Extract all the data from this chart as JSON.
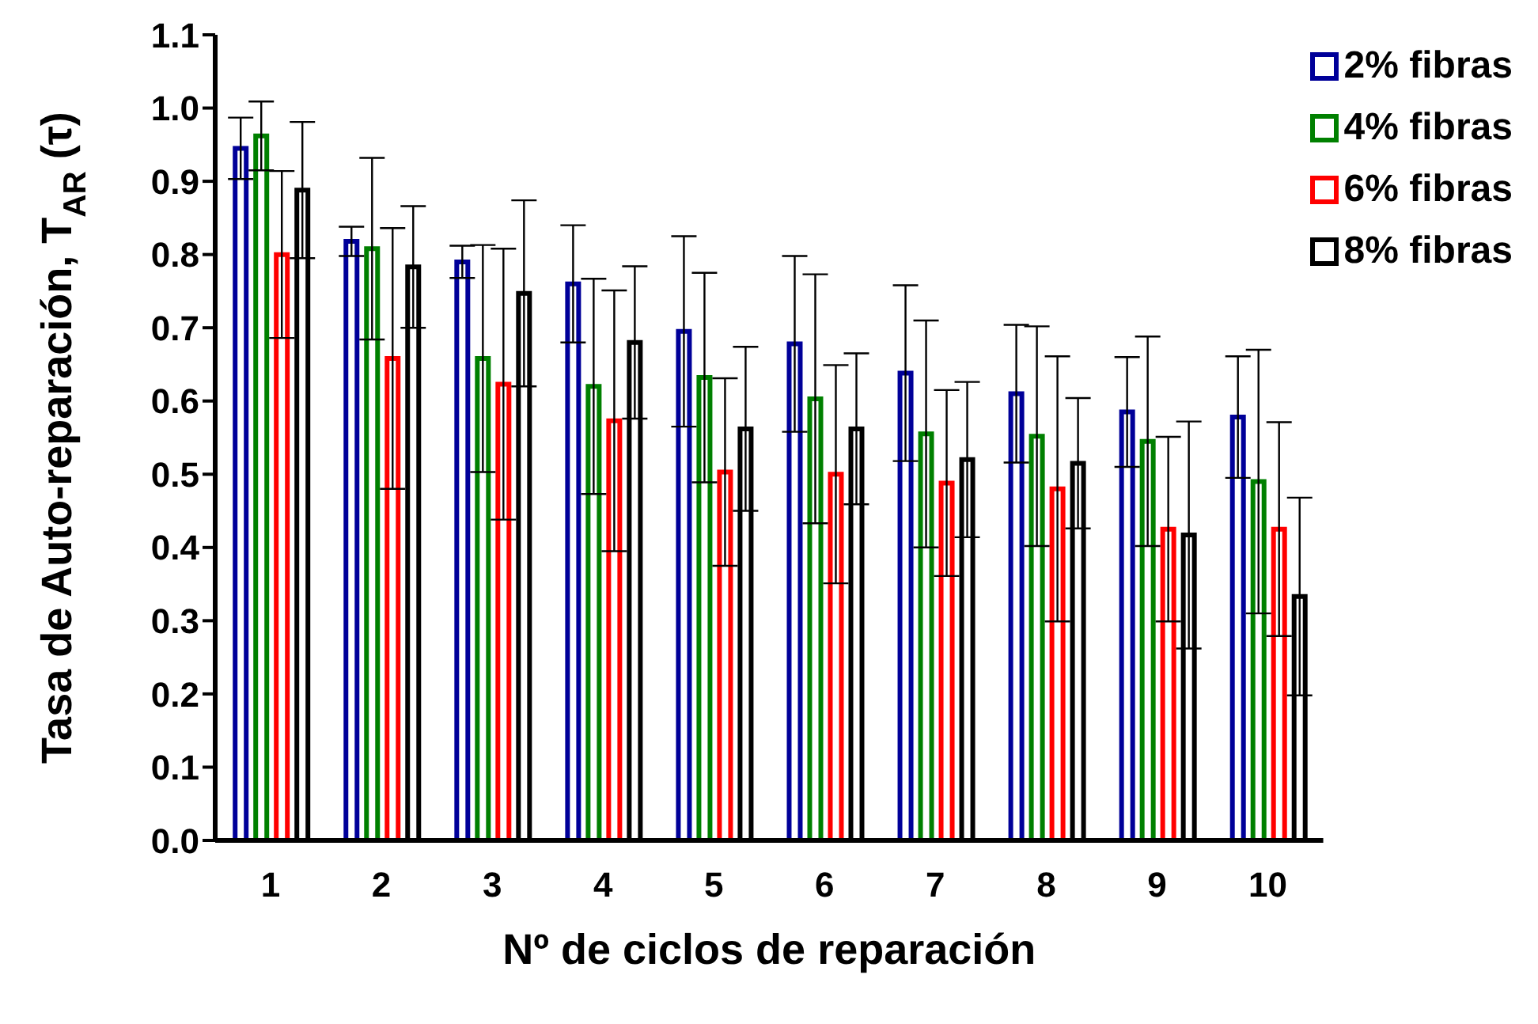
{
  "chart_data": {
    "type": "bar",
    "xlabel": "Nº de ciclos de reparación",
    "ylabel": "Tasa de Auto-reparación,  T$_{AR}$ (τ)",
    "categories": [
      "1",
      "2",
      "3",
      "4",
      "5",
      "6",
      "7",
      "8",
      "9",
      "10"
    ],
    "series": [
      {
        "name": "2% fibras",
        "color": "#000099",
        "values": [
          0.945,
          0.818,
          0.79,
          0.76,
          0.695,
          0.678,
          0.638,
          0.61,
          0.585,
          0.578
        ],
        "errors": [
          0.042,
          0.02,
          0.022,
          0.08,
          0.13,
          0.12,
          0.12,
          0.094,
          0.075,
          0.083
        ]
      },
      {
        "name": "4% fibras",
        "color": "#008000",
        "values": [
          0.962,
          0.808,
          0.658,
          0.62,
          0.632,
          0.603,
          0.555,
          0.552,
          0.545,
          0.49
        ],
        "errors": [
          0.047,
          0.124,
          0.155,
          0.147,
          0.143,
          0.17,
          0.155,
          0.15,
          0.143,
          0.18
        ]
      },
      {
        "name": "6% fibras",
        "color": "#ff0000",
        "values": [
          0.8,
          0.658,
          0.623,
          0.573,
          0.503,
          0.5,
          0.488,
          0.48,
          0.425,
          0.425
        ],
        "errors": [
          0.114,
          0.178,
          0.185,
          0.178,
          0.128,
          0.149,
          0.127,
          0.181,
          0.126,
          0.146
        ]
      },
      {
        "name": "8% fibras",
        "color": "#000000",
        "values": [
          0.888,
          0.783,
          0.747,
          0.68,
          0.562,
          0.562,
          0.52,
          0.515,
          0.417,
          0.333
        ],
        "errors": [
          0.093,
          0.083,
          0.127,
          0.104,
          0.112,
          0.103,
          0.106,
          0.089,
          0.155,
          0.135
        ]
      }
    ],
    "ylim": [
      0,
      1.1
    ],
    "yticks": [
      {
        "value": 0,
        "label": "0.0"
      },
      0.1,
      0.2,
      0.3,
      0.4,
      0.5,
      0.6,
      0.7,
      0.8,
      0.9,
      {
        "value": 1,
        "label": "1.0"
      },
      1.1
    ],
    "legend": "top right",
    "grid": false
  }
}
